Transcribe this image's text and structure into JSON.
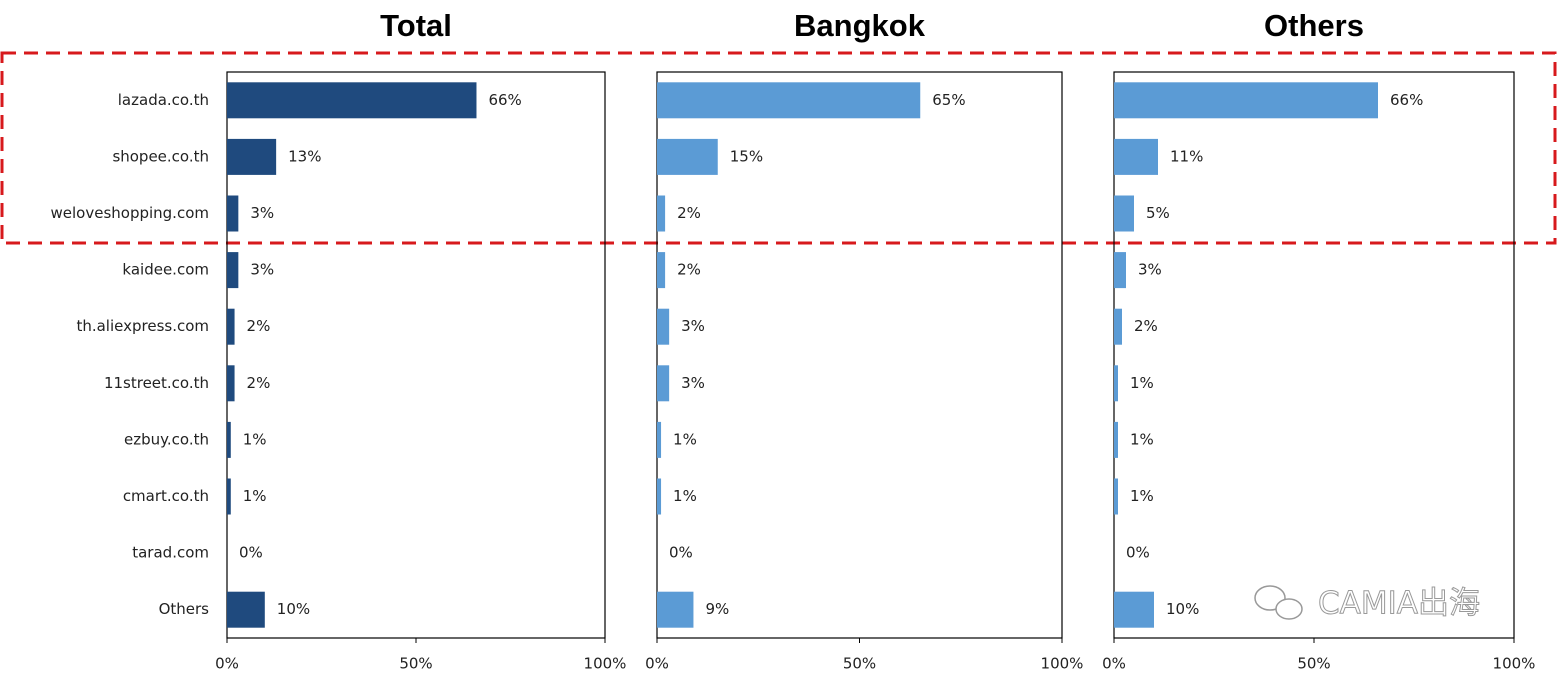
{
  "chart_data": [
    {
      "type": "bar",
      "orientation": "horizontal",
      "title": "Total",
      "categories": [
        "lazada.co.th",
        "shopee.co.th",
        "weloveshopping.com",
        "kaidee.com",
        "th.aliexpress.com",
        "11street.co.th",
        "ezbuy.co.th",
        "cmart.co.th",
        "tarad.com",
        "Others"
      ],
      "values": [
        66,
        13,
        3,
        3,
        2,
        2,
        1,
        1,
        0,
        10
      ],
      "value_labels": [
        "66%",
        "13%",
        "3%",
        "3%",
        "2%",
        "2%",
        "1%",
        "1%",
        "0%",
        "10%"
      ],
      "color": "#1f4a7e",
      "xlim": [
        0,
        100
      ],
      "xticks": [
        {
          "value": 0,
          "label": "0%"
        },
        {
          "value": 50,
          "label": "50%"
        },
        {
          "value": 100,
          "label": "100%"
        }
      ]
    },
    {
      "type": "bar",
      "orientation": "horizontal",
      "title": "Bangkok",
      "values": [
        65,
        15,
        2,
        2,
        3,
        3,
        1,
        1,
        0,
        9
      ],
      "value_labels": [
        "65%",
        "15%",
        "2%",
        "2%",
        "3%",
        "3%",
        "1%",
        "1%",
        "0%",
        "9%"
      ],
      "color": "#5b9bd5",
      "xlim": [
        0,
        100
      ],
      "xticks": [
        {
          "value": 0,
          "label": "0%"
        },
        {
          "value": 50,
          "label": "50%"
        },
        {
          "value": 100,
          "label": "100%"
        }
      ]
    },
    {
      "type": "bar",
      "orientation": "horizontal",
      "title": "Others",
      "values": [
        66,
        11,
        5,
        3,
        2,
        1,
        1,
        1,
        0,
        10
      ],
      "value_labels": [
        "66%",
        "11%",
        "5%",
        "3%",
        "2%",
        "1%",
        "1%",
        "1%",
        "0%",
        "10%"
      ],
      "color": "#5b9bd5",
      "xlim": [
        0,
        100
      ],
      "xticks": [
        {
          "value": 0,
          "label": "0%"
        },
        {
          "value": 50,
          "label": "50%"
        },
        {
          "value": 100,
          "label": "100%"
        }
      ]
    }
  ],
  "watermark": "CAMIA出海"
}
